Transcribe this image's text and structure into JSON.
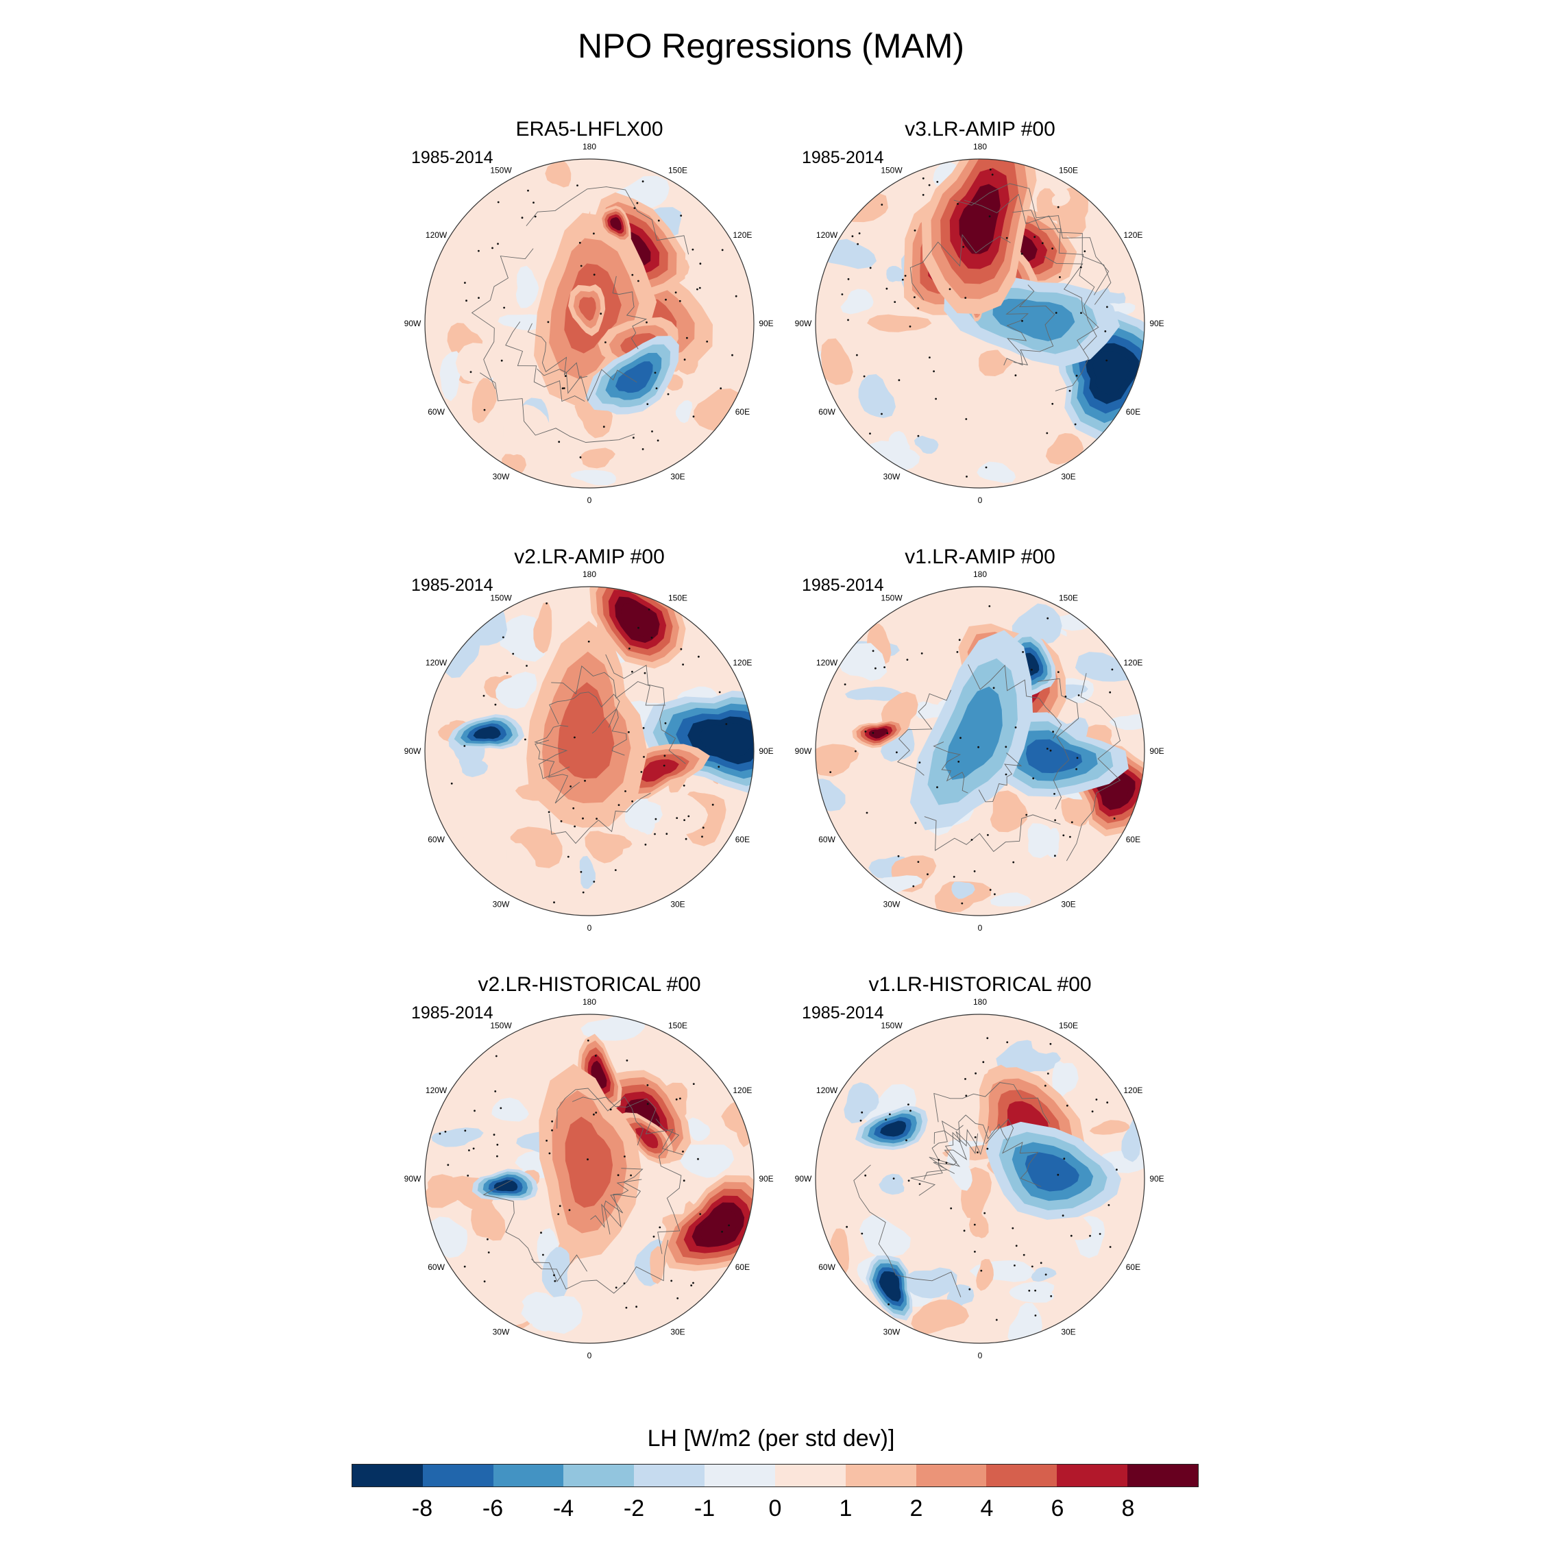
{
  "title": "NPO Regressions (MAM)",
  "lon_labels": [
    "180",
    "150E",
    "120E",
    "90E",
    "60E",
    "30E",
    "0",
    "30W",
    "60W",
    "90W",
    "120W",
    "150W"
  ],
  "panels": [
    {
      "title": "ERA5-LHFLX00",
      "period": "1985-2014"
    },
    {
      "title": "v3.LR-AMIP  #00",
      "period": "1985-2014"
    },
    {
      "title": "v2.LR-AMIP  #00",
      "period": "1985-2014"
    },
    {
      "title": "v1.LR-AMIP  #00",
      "period": "1985-2014"
    },
    {
      "title": "v2.LR-HISTORICAL  #00",
      "period": "1985-2014"
    },
    {
      "title": "v1.LR-HISTORICAL  #00",
      "period": "1985-2014"
    }
  ],
  "colorbar": {
    "title": "LH [W/m2 (per std dev)]",
    "labels": [
      "-8",
      "-6",
      "-4",
      "-2",
      "-1",
      "0",
      "1",
      "2",
      "4",
      "6",
      "8"
    ],
    "colors": [
      "#053061",
      "#2166ac",
      "#4393c3",
      "#92c5de",
      "#c6dbef",
      "#e8eef5",
      "#fbe5da",
      "#f8c1a6",
      "#eb9478",
      "#d6604d",
      "#b2182b",
      "#67001f"
    ]
  }
}
